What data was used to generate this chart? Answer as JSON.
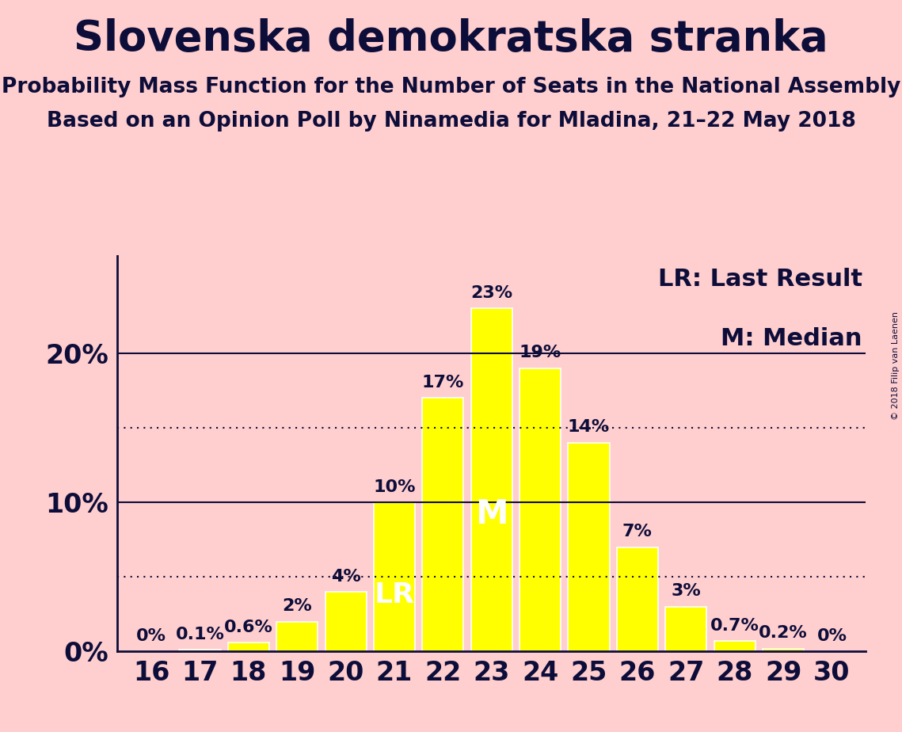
{
  "title": "Slovenska demokratska stranka",
  "subtitle1": "Probability Mass Function for the Number of Seats in the National Assembly",
  "subtitle2": "Based on an Opinion Poll by Ninamedia for Mladina, 21–22 May 2018",
  "copyright": "© 2018 Filip van Laenen",
  "categories": [
    16,
    17,
    18,
    19,
    20,
    21,
    22,
    23,
    24,
    25,
    26,
    27,
    28,
    29,
    30
  ],
  "values": [
    0.0,
    0.1,
    0.6,
    2.0,
    4.0,
    10.0,
    17.0,
    23.0,
    19.0,
    14.0,
    7.0,
    3.0,
    0.7,
    0.2,
    0.0
  ],
  "labels": [
    "0%",
    "0.1%",
    "0.6%",
    "2%",
    "4%",
    "10%",
    "17%",
    "23%",
    "19%",
    "14%",
    "7%",
    "3%",
    "0.7%",
    "0.2%",
    "0%"
  ],
  "bar_color": "#FFFF00",
  "bar_edge_color": "#FFFFFF",
  "background_color": "#FFCECE",
  "text_color": "#0D0D3A",
  "lr_seat": 21,
  "median_seat": 23,
  "yticks": [
    0,
    10,
    20
  ],
  "dotted_lines": [
    5,
    15
  ],
  "solid_lines": [
    10,
    20
  ],
  "ylim": [
    0,
    26.5
  ],
  "title_fontsize": 38,
  "subtitle_fontsize": 19,
  "label_fontsize": 16,
  "tick_fontsize": 24,
  "legend_fontsize": 22,
  "lr_label_fontsize": 26,
  "m_label_fontsize": 30
}
